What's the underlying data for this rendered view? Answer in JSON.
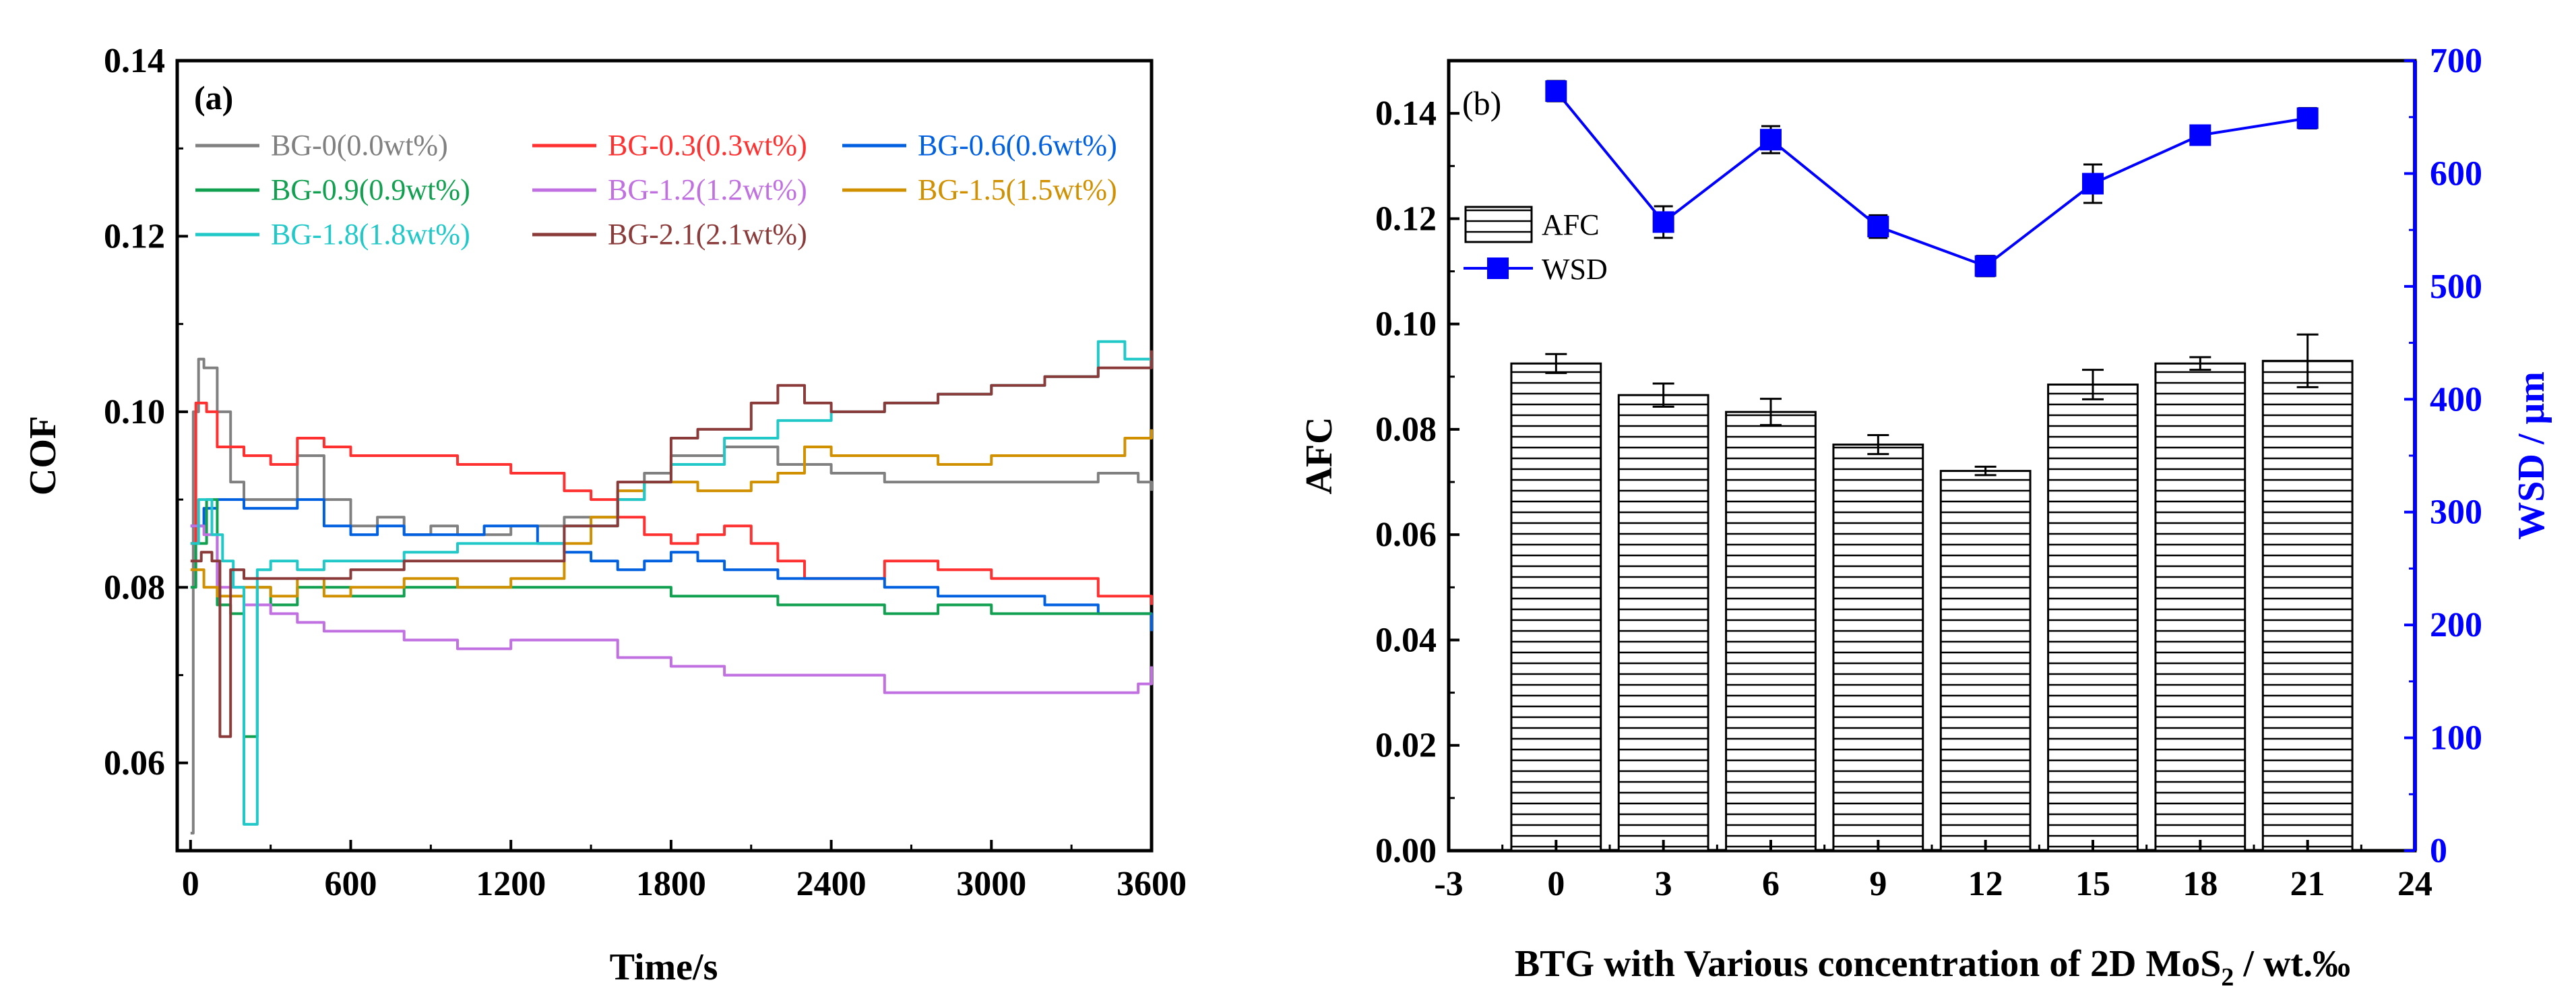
{
  "chart_data": [
    {
      "type": "line",
      "panel_label": "(a)",
      "xlabel": "Time/s",
      "ylabel": "COF",
      "xlim": [
        -50,
        3600
      ],
      "ylim": [
        0.05,
        0.14
      ],
      "xticks": [
        "0",
        "600",
        "1200",
        "1800",
        "2400",
        "3000",
        "3600"
      ],
      "yticks": [
        "0.06",
        "0.08",
        "0.10",
        "0.12",
        "0.14"
      ],
      "legend_position": "top",
      "series": [
        {
          "name": "BG-0(0.0wt%)",
          "color": "#808080",
          "x": [
            0,
            10,
            30,
            50,
            100,
            150,
            200,
            300,
            400,
            500,
            600,
            700,
            800,
            900,
            1000,
            1100,
            1200,
            1300,
            1400,
            1500,
            1600,
            1700,
            1800,
            2000,
            2200,
            2400,
            2600,
            2800,
            3000,
            3200,
            3400,
            3550,
            3600
          ],
          "y": [
            0.052,
            0.1,
            0.106,
            0.105,
            0.1,
            0.092,
            0.09,
            0.09,
            0.095,
            0.09,
            0.087,
            0.088,
            0.086,
            0.087,
            0.086,
            0.086,
            0.087,
            0.087,
            0.088,
            0.088,
            0.09,
            0.093,
            0.095,
            0.096,
            0.094,
            0.093,
            0.092,
            0.092,
            0.092,
            0.092,
            0.093,
            0.092,
            0.091
          ]
        },
        {
          "name": "BG-0.3(0.3wt%)",
          "color": "#ff3030",
          "x": [
            0,
            20,
            60,
            100,
            200,
            300,
            400,
            500,
            600,
            800,
            1000,
            1200,
            1400,
            1500,
            1600,
            1700,
            1800,
            1900,
            2000,
            2100,
            2200,
            2300,
            2400,
            2600,
            2800,
            3000,
            3200,
            3400,
            3600
          ],
          "y": [
            0.085,
            0.101,
            0.1,
            0.096,
            0.095,
            0.094,
            0.097,
            0.096,
            0.095,
            0.095,
            0.094,
            0.093,
            0.091,
            0.09,
            0.088,
            0.086,
            0.085,
            0.086,
            0.087,
            0.085,
            0.083,
            0.081,
            0.081,
            0.083,
            0.082,
            0.081,
            0.081,
            0.079,
            0.078
          ]
        },
        {
          "name": "BG-0.6(0.6wt%)",
          "color": "#0060e0",
          "x": [
            0,
            50,
            100,
            200,
            300,
            400,
            500,
            600,
            700,
            800,
            900,
            1000,
            1100,
            1200,
            1300,
            1400,
            1500,
            1600,
            1700,
            1800,
            1900,
            2000,
            2200,
            2400,
            2600,
            2800,
            3000,
            3200,
            3400,
            3600
          ],
          "y": [
            0.087,
            0.089,
            0.09,
            0.089,
            0.089,
            0.09,
            0.087,
            0.086,
            0.087,
            0.086,
            0.086,
            0.086,
            0.087,
            0.087,
            0.085,
            0.084,
            0.083,
            0.082,
            0.083,
            0.084,
            0.083,
            0.082,
            0.081,
            0.081,
            0.08,
            0.079,
            0.079,
            0.078,
            0.077,
            0.075
          ]
        },
        {
          "name": "BG-0.9(0.9wt%)",
          "color": "#10a050",
          "x": [
            0,
            20,
            60,
            100,
            150,
            200,
            250,
            300,
            400,
            600,
            800,
            1000,
            1200,
            1400,
            1600,
            1800,
            2000,
            2200,
            2400,
            2600,
            2800,
            3000,
            3200,
            3400,
            3600
          ],
          "y": [
            0.08,
            0.085,
            0.09,
            0.078,
            0.077,
            0.063,
            0.08,
            0.078,
            0.08,
            0.079,
            0.08,
            0.08,
            0.08,
            0.08,
            0.08,
            0.079,
            0.079,
            0.078,
            0.078,
            0.077,
            0.078,
            0.077,
            0.077,
            0.077,
            0.077
          ]
        },
        {
          "name": "BG-1.2(1.2wt%)",
          "color": "#c070e0",
          "x": [
            0,
            50,
            100,
            200,
            300,
            400,
            500,
            600,
            800,
            1000,
            1200,
            1400,
            1600,
            1800,
            2000,
            2200,
            2400,
            2600,
            2800,
            3000,
            3200,
            3400,
            3550,
            3600
          ],
          "y": [
            0.087,
            0.086,
            0.08,
            0.078,
            0.077,
            0.076,
            0.075,
            0.075,
            0.074,
            0.073,
            0.074,
            0.074,
            0.072,
            0.071,
            0.07,
            0.07,
            0.07,
            0.068,
            0.068,
            0.068,
            0.068,
            0.068,
            0.069,
            0.071
          ]
        },
        {
          "name": "BG-1.5(1.5wt%)",
          "color": "#d09000",
          "x": [
            0,
            50,
            100,
            200,
            300,
            400,
            500,
            600,
            800,
            1000,
            1200,
            1400,
            1500,
            1600,
            1700,
            1800,
            1900,
            2000,
            2100,
            2200,
            2300,
            2400,
            2600,
            2800,
            3000,
            3200,
            3400,
            3500,
            3600
          ],
          "y": [
            0.082,
            0.08,
            0.079,
            0.08,
            0.079,
            0.081,
            0.079,
            0.08,
            0.081,
            0.08,
            0.081,
            0.085,
            0.088,
            0.091,
            0.092,
            0.092,
            0.091,
            0.091,
            0.092,
            0.093,
            0.096,
            0.095,
            0.095,
            0.094,
            0.095,
            0.095,
            0.095,
            0.097,
            0.098
          ]
        },
        {
          "name": "BG-1.8(1.8wt%)",
          "color": "#20c8c8",
          "x": [
            0,
            30,
            80,
            120,
            160,
            200,
            250,
            300,
            400,
            500,
            600,
            800,
            1000,
            1200,
            1400,
            1600,
            1700,
            1800,
            2000,
            2200,
            2400,
            2600,
            2800,
            3000,
            3200,
            3400,
            3500,
            3600
          ],
          "y": [
            0.085,
            0.09,
            0.086,
            0.083,
            0.08,
            0.053,
            0.082,
            0.083,
            0.082,
            0.083,
            0.083,
            0.084,
            0.085,
            0.085,
            0.087,
            0.09,
            0.092,
            0.094,
            0.097,
            0.099,
            0.1,
            0.101,
            0.102,
            0.103,
            0.104,
            0.108,
            0.106,
            0.105
          ]
        },
        {
          "name": "BG-2.1(2.1wt%)",
          "color": "#8b3a3a",
          "x": [
            0,
            40,
            80,
            110,
            150,
            200,
            300,
            400,
            600,
            800,
            1000,
            1200,
            1400,
            1600,
            1800,
            1900,
            2000,
            2100,
            2200,
            2300,
            2400,
            2600,
            2800,
            3000,
            3200,
            3400,
            3600
          ],
          "y": [
            0.083,
            0.084,
            0.083,
            0.063,
            0.082,
            0.081,
            0.081,
            0.081,
            0.082,
            0.083,
            0.083,
            0.083,
            0.087,
            0.092,
            0.097,
            0.098,
            0.098,
            0.101,
            0.103,
            0.101,
            0.1,
            0.101,
            0.102,
            0.103,
            0.104,
            0.105,
            0.107
          ]
        }
      ]
    },
    {
      "type": "bar",
      "panel_label": "(b)",
      "xlabel": "BTG with Various concentration of 2D MoS",
      "xlabel_sub": "2",
      "xlabel_suffix": " / wt.‰",
      "ylabel": "AFC",
      "ylabel_right": "WSD / μm",
      "xlim": [
        -3,
        24
      ],
      "ylim": [
        0.0,
        0.15
      ],
      "ylim_right": [
        0,
        700
      ],
      "xticks": [
        "-3",
        "0",
        "3",
        "6",
        "9",
        "12",
        "15",
        "18",
        "21",
        "24"
      ],
      "yticks": [
        "0.00",
        "0.02",
        "0.04",
        "0.06",
        "0.08",
        "0.10",
        "0.12",
        "0.14"
      ],
      "yticks_right": [
        "0",
        "100",
        "200",
        "300",
        "400",
        "500",
        "600",
        "700"
      ],
      "legend_position": "upper-left",
      "categories": [
        0,
        3,
        6,
        9,
        12,
        15,
        18,
        21
      ],
      "series": [
        {
          "name": "AFC",
          "kind": "bar",
          "color": "#000000",
          "values": [
            0.0925,
            0.0865,
            0.0833,
            0.0771,
            0.0721,
            0.0885,
            0.0925,
            0.093
          ],
          "errors": [
            0.0018,
            0.0022,
            0.0025,
            0.0018,
            0.0008,
            0.0028,
            0.0012,
            0.005
          ]
        },
        {
          "name": "WSD",
          "kind": "line-marker",
          "color": "#0000ff",
          "values": [
            673,
            557,
            630,
            553,
            518,
            591,
            634,
            649
          ],
          "errors": [
            9,
            14,
            12,
            10,
            9,
            17,
            8,
            9
          ]
        }
      ]
    }
  ]
}
